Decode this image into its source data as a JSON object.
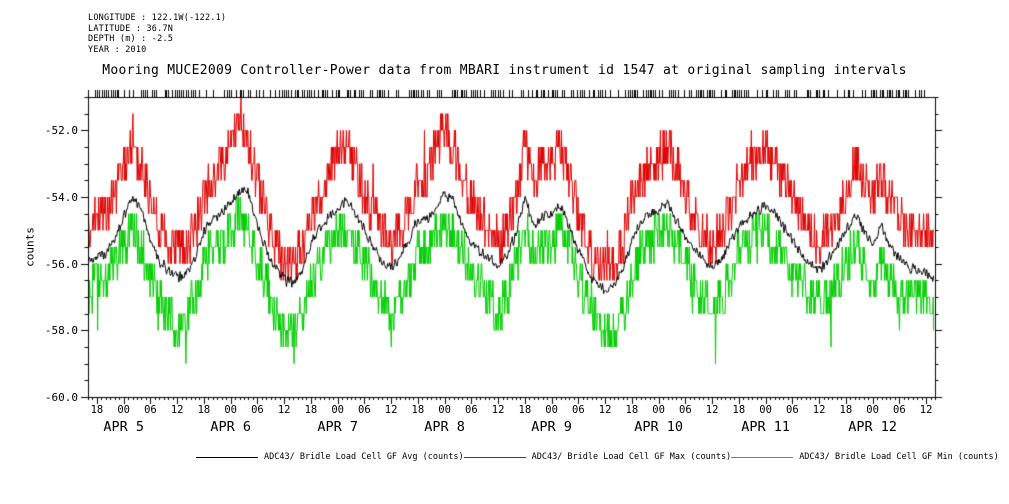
{
  "header": {
    "longitude": "LONGITUDE : 122.1W(-122.1)",
    "latitude": "LATITUDE : 36.7N",
    "depth": "DEPTH (m) : -2.5",
    "year": "YEAR : 2010"
  },
  "title": "Mooring MUCE2009 Controller-Power data from MBARI instrument id 1547 at original sampling intervals",
  "legend": [
    {
      "label": "ADC43/ Bridle Load Cell GF Avg (counts)",
      "color": "#000000"
    },
    {
      "label": "ADC43/ Bridle Load Cell GF Max (counts)",
      "color": "#dd0000"
    },
    {
      "label": "ADC43/ Bridle Load Cell GF Min (counts)",
      "color": "#00cc00"
    }
  ],
  "chart_data": {
    "type": "line",
    "title": "Mooring MUCE2009 Controller-Power data from MBARI instrument id 1547 at original sampling intervals",
    "xlabel": "",
    "ylabel": "counts",
    "ylim": [
      -60.0,
      -51.0
    ],
    "grid": false,
    "legend_position": "bottom",
    "y_ticks": [
      -52.0,
      -54.0,
      -56.0,
      -58.0,
      -60.0
    ],
    "y_tick_labels": [
      "-52.0",
      "-54.0",
      "-56.0",
      "-58.0",
      "-60.0"
    ],
    "y_minor_step": 0.5,
    "x_start_label": "APR 4 16:00",
    "x_step_hours": 2,
    "x_total_hours": 190,
    "x_major_ticks": [
      {
        "t": 2,
        "label": "18"
      },
      {
        "t": 8,
        "label": "00"
      },
      {
        "t": 14,
        "label": "06"
      },
      {
        "t": 20,
        "label": "12"
      },
      {
        "t": 26,
        "label": "18"
      },
      {
        "t": 32,
        "label": "00"
      },
      {
        "t": 38,
        "label": "06"
      },
      {
        "t": 44,
        "label": "12"
      },
      {
        "t": 50,
        "label": "18"
      },
      {
        "t": 56,
        "label": "00"
      },
      {
        "t": 62,
        "label": "06"
      },
      {
        "t": 68,
        "label": "12"
      },
      {
        "t": 74,
        "label": "18"
      },
      {
        "t": 80,
        "label": "00"
      },
      {
        "t": 86,
        "label": "06"
      },
      {
        "t": 92,
        "label": "12"
      },
      {
        "t": 98,
        "label": "18"
      },
      {
        "t": 104,
        "label": "00"
      },
      {
        "t": 110,
        "label": "06"
      },
      {
        "t": 116,
        "label": "12"
      },
      {
        "t": 122,
        "label": "18"
      },
      {
        "t": 128,
        "label": "00"
      },
      {
        "t": 134,
        "label": "06"
      },
      {
        "t": 140,
        "label": "12"
      },
      {
        "t": 146,
        "label": "18"
      },
      {
        "t": 152,
        "label": "00"
      },
      {
        "t": 158,
        "label": "06"
      },
      {
        "t": 164,
        "label": "12"
      },
      {
        "t": 170,
        "label": "18"
      },
      {
        "t": 176,
        "label": "00"
      },
      {
        "t": 182,
        "label": "06"
      },
      {
        "t": 188,
        "label": "12"
      }
    ],
    "x_day_labels": [
      {
        "t": 8,
        "label": "APR 5"
      },
      {
        "t": 32,
        "label": "APR 6"
      },
      {
        "t": 56,
        "label": "APR 7"
      },
      {
        "t": 80,
        "label": "APR 8"
      },
      {
        "t": 104,
        "label": "APR 9"
      },
      {
        "t": 128,
        "label": "APR 10"
      },
      {
        "t": 152,
        "label": "APR 11"
      },
      {
        "t": 176,
        "label": "APR 12"
      }
    ],
    "series": [
      {
        "name": "ADC43/ Bridle Load Cell GF Min (counts)",
        "color": "#00cc00",
        "style": "quantized",
        "quantize": 0.5,
        "jitter_prob": 0.28,
        "spike_prob": 0.012,
        "spike": 1.0,
        "spike_dir": -1,
        "values": [
          -57.0,
          -56.5,
          -56.5,
          -56.0,
          -55.5,
          -55.0,
          -55.5,
          -56.5,
          -57.0,
          -57.5,
          -58.0,
          -57.5,
          -57.0,
          -56.0,
          -55.5,
          -55.5,
          -55.0,
          -54.5,
          -55.0,
          -56.0,
          -56.5,
          -57.5,
          -58.0,
          -58.0,
          -57.5,
          -56.5,
          -56.0,
          -55.5,
          -55.0,
          -55.0,
          -55.5,
          -56.0,
          -56.5,
          -57.0,
          -57.5,
          -57.0,
          -56.5,
          -55.5,
          -55.5,
          -55.0,
          -55.0,
          -55.0,
          -55.5,
          -56.5,
          -56.5,
          -57.0,
          -57.5,
          -57.0,
          -56.0,
          -55.0,
          -55.5,
          -55.5,
          -55.5,
          -55.0,
          -55.5,
          -56.5,
          -57.0,
          -57.5,
          -58.0,
          -58.0,
          -57.5,
          -56.5,
          -55.5,
          -55.5,
          -55.0,
          -55.0,
          -55.5,
          -56.0,
          -56.5,
          -57.0,
          -57.5,
          -57.0,
          -56.5,
          -55.5,
          -55.5,
          -55.0,
          -55.0,
          -55.5,
          -55.5,
          -56.0,
          -56.5,
          -57.0,
          -57.0,
          -57.0,
          -56.5,
          -56.0,
          -55.5,
          -56.0,
          -56.5,
          -56.0,
          -56.5,
          -57.0,
          -57.0,
          -57.0,
          -57.0,
          -57.5
        ]
      },
      {
        "name": "ADC43/ Bridle Load Cell GF Max (counts)",
        "color": "#dd0000",
        "style": "quantized",
        "quantize": 0.5,
        "jitter_prob": 0.28,
        "spike_prob": 0.012,
        "spike": 1.0,
        "spike_dir": 1,
        "values": [
          -55.0,
          -54.5,
          -54.5,
          -54.0,
          -53.0,
          -52.5,
          -53.0,
          -54.0,
          -55.0,
          -55.5,
          -55.5,
          -55.5,
          -55.0,
          -54.0,
          -53.5,
          -53.0,
          -52.5,
          -51.5,
          -52.5,
          -53.5,
          -54.5,
          -55.5,
          -56.0,
          -56.0,
          -55.5,
          -54.5,
          -54.0,
          -53.5,
          -52.5,
          -52.5,
          -53.0,
          -54.0,
          -54.5,
          -55.0,
          -55.5,
          -55.0,
          -54.5,
          -53.5,
          -53.5,
          -52.5,
          -52.0,
          -52.5,
          -53.5,
          -54.0,
          -54.5,
          -55.0,
          -55.5,
          -55.0,
          -54.0,
          -52.5,
          -53.5,
          -53.0,
          -53.0,
          -52.5,
          -53.5,
          -54.5,
          -55.5,
          -56.0,
          -56.0,
          -56.0,
          -55.5,
          -54.0,
          -53.5,
          -53.0,
          -53.0,
          -52.5,
          -53.0,
          -54.0,
          -54.5,
          -55.0,
          -55.5,
          -55.0,
          -54.5,
          -53.5,
          -53.0,
          -53.0,
          -52.5,
          -53.0,
          -53.5,
          -54.0,
          -54.5,
          -55.0,
          -55.5,
          -55.0,
          -54.5,
          -54.0,
          -53.0,
          -53.5,
          -54.0,
          -53.5,
          -54.0,
          -54.5,
          -55.0,
          -55.0,
          -55.0,
          -55.0
        ]
      },
      {
        "name": "ADC43/ Bridle Load Cell GF Avg (counts)",
        "color": "#000000",
        "style": "noisy",
        "noise": 0.38,
        "values": [
          -55.9,
          -55.8,
          -55.7,
          -55.2,
          -54.6,
          -54.0,
          -54.4,
          -55.3,
          -55.9,
          -56.2,
          -56.4,
          -56.3,
          -55.8,
          -55.0,
          -54.7,
          -54.5,
          -54.2,
          -53.8,
          -53.9,
          -54.8,
          -55.6,
          -56.1,
          -56.5,
          -56.6,
          -56.2,
          -55.4,
          -54.9,
          -54.6,
          -54.3,
          -54.1,
          -54.5,
          -55.0,
          -55.5,
          -55.9,
          -56.1,
          -55.8,
          -55.3,
          -54.6,
          -54.7,
          -54.3,
          -53.9,
          -54.1,
          -54.8,
          -55.4,
          -55.6,
          -55.9,
          -56.0,
          -55.7,
          -55.1,
          -54.0,
          -54.9,
          -54.6,
          -54.5,
          -54.3,
          -54.9,
          -55.6,
          -56.2,
          -56.6,
          -56.8,
          -56.7,
          -56.2,
          -55.3,
          -54.8,
          -54.5,
          -54.4,
          -54.2,
          -54.7,
          -55.2,
          -55.6,
          -55.9,
          -56.1,
          -55.8,
          -55.4,
          -54.9,
          -54.6,
          -54.4,
          -54.3,
          -54.5,
          -54.9,
          -55.3,
          -55.7,
          -56.0,
          -56.2,
          -55.9,
          -55.5,
          -55.0,
          -54.5,
          -55.0,
          -55.4,
          -54.9,
          -55.5,
          -55.9,
          -56.1,
          -56.2,
          -56.3,
          -56.5
        ]
      }
    ]
  }
}
